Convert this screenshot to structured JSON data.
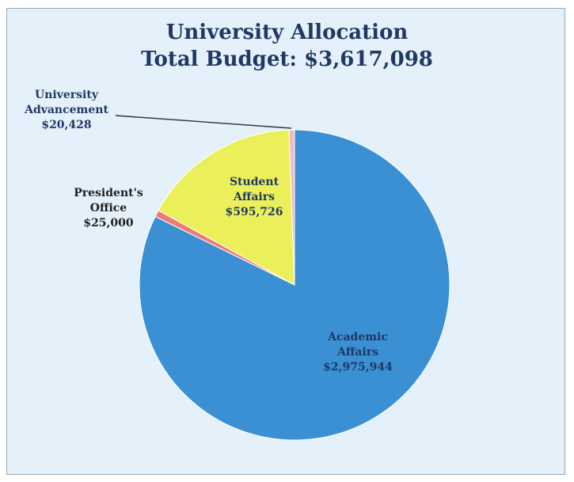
{
  "chart_data": {
    "type": "pie",
    "title": "University Allocation",
    "subtitle": "Total Budget:  $3,617,098",
    "slices": [
      {
        "label_lines": [
          "Academic",
          "Affairs",
          "$2,975,944"
        ],
        "value": 2975944,
        "color": "#3b8fd3",
        "label_color": "#1f3864"
      },
      {
        "label_lines": [
          "President's",
          "Office",
          "$25,000"
        ],
        "value": 25000,
        "color": "#ee7b74",
        "label_color": "#1f1f1f"
      },
      {
        "label_lines": [
          "Student",
          "Affairs",
          "$595,726"
        ],
        "value": 595726,
        "color": "#ebf05a",
        "label_color": "#1f3864"
      },
      {
        "label_lines": [
          "University",
          "Advancement",
          "$20,428"
        ],
        "value": 20428,
        "color": "#f2b8c6",
        "label_color": "#1f3864"
      }
    ]
  }
}
